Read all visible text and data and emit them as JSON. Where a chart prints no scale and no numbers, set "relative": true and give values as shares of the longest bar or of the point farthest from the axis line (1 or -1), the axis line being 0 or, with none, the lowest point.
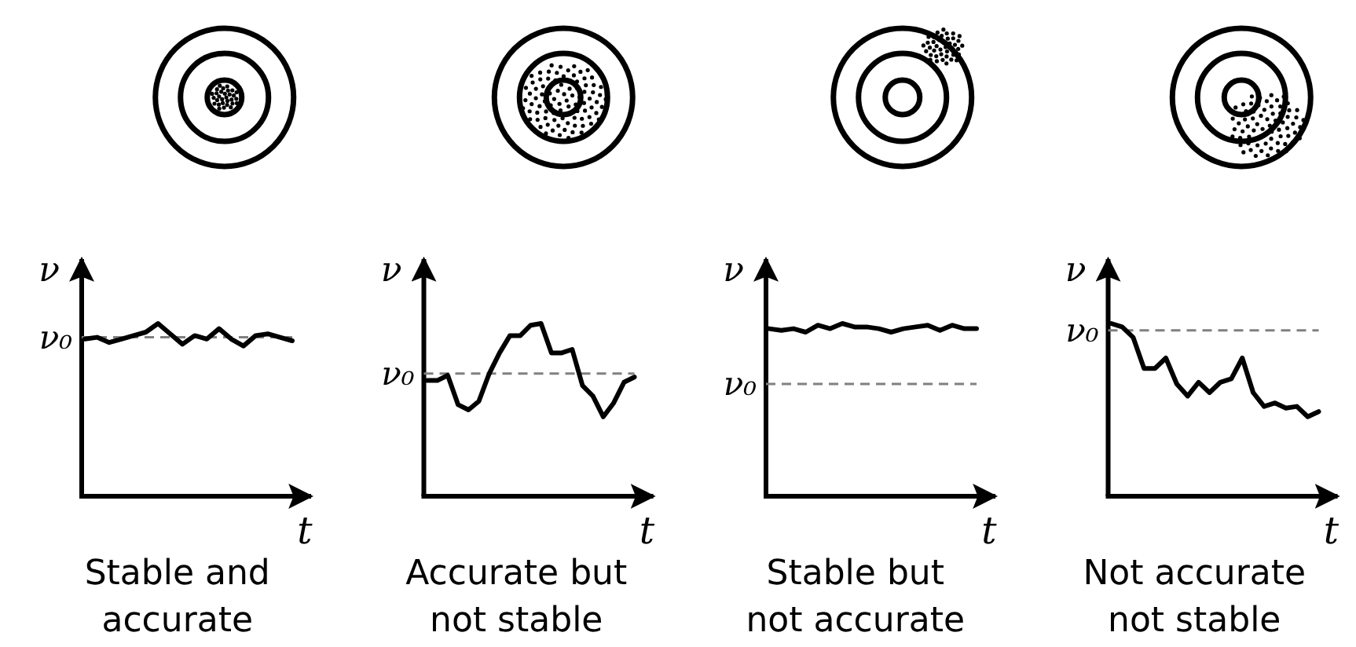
{
  "chart_data": [
    {
      "type": "line",
      "relative": true,
      "title": "Stable and accurate",
      "xlabel": "t",
      "ylabel": "ν",
      "categories": [
        null,
        null,
        null,
        null,
        null,
        null,
        null,
        null,
        null,
        null,
        null,
        null,
        null,
        null,
        null,
        null,
        null,
        null
      ],
      "series": [
        {
          "color": "#000000",
          "values": [
            0.91,
            0.92,
            0.89,
            0.91,
            0.93,
            0.95,
            1,
            0.94,
            0.88,
            0.93,
            0.91,
            0.97,
            0.91,
            0.87,
            0.93,
            0.94,
            0.92,
            0.9
          ]
        }
      ],
      "ref_lines": [
        {
          "axis": "y",
          "value": 0.92,
          "label": "ν₀",
          "color": "#808080",
          "line_style": "dashed"
        }
      ]
    },
    {
      "type": "line",
      "relative": true,
      "title": "Accurate but not stable",
      "xlabel": "t",
      "ylabel": "ν",
      "categories": [
        null,
        null,
        null,
        null,
        null,
        null,
        null,
        null,
        null,
        null,
        null,
        null,
        null,
        null,
        null,
        null,
        null,
        null,
        null,
        null,
        null
      ],
      "series": [
        {
          "color": "#000000",
          "values": [
            0.67,
            0.67,
            0.7,
            0.53,
            0.5,
            0.55,
            0.71,
            0.83,
            0.93,
            0.93,
            0.99,
            1,
            0.83,
            0.83,
            0.85,
            0.64,
            0.58,
            0.46,
            0.54,
            0.66,
            0.69
          ]
        }
      ],
      "ref_lines": [
        {
          "axis": "y",
          "value": 0.71,
          "label": "ν₀",
          "color": "#808080",
          "line_style": "dashed"
        }
      ]
    },
    {
      "type": "line",
      "relative": true,
      "title": "Stable but not accurate",
      "xlabel": "t",
      "ylabel": "ν",
      "categories": [
        null,
        null,
        null,
        null,
        null,
        null,
        null,
        null,
        null,
        null,
        null,
        null,
        null,
        null,
        null,
        null,
        null,
        null
      ],
      "series": [
        {
          "color": "#000000",
          "values": [
            0.97,
            0.96,
            0.97,
            0.95,
            0.99,
            0.97,
            1,
            0.98,
            0.98,
            0.97,
            0.95,
            0.97,
            0.98,
            0.99,
            0.96,
            0.99,
            0.97,
            0.97
          ]
        }
      ],
      "ref_lines": [
        {
          "axis": "y",
          "value": 0.65,
          "label": "ν₀",
          "color": "#808080",
          "line_style": "dashed"
        }
      ]
    },
    {
      "type": "line",
      "relative": true,
      "title": "Not accurate not stable",
      "xlabel": "t",
      "ylabel": "ν",
      "categories": [
        null,
        null,
        null,
        null,
        null,
        null,
        null,
        null,
        null,
        null,
        null,
        null,
        null,
        null,
        null,
        null,
        null,
        null,
        null,
        null
      ],
      "series": [
        {
          "color": "#000000",
          "values": [
            1,
            0.98,
            0.92,
            0.74,
            0.74,
            0.8,
            0.65,
            0.58,
            0.66,
            0.6,
            0.66,
            0.68,
            0.8,
            0.6,
            0.52,
            0.54,
            0.51,
            0.52,
            0.46,
            0.49
          ]
        }
      ],
      "ref_lines": [
        {
          "axis": "y",
          "value": 0.96,
          "label": "ν₀",
          "color": "#808080",
          "line_style": "dashed"
        }
      ]
    }
  ]
}
